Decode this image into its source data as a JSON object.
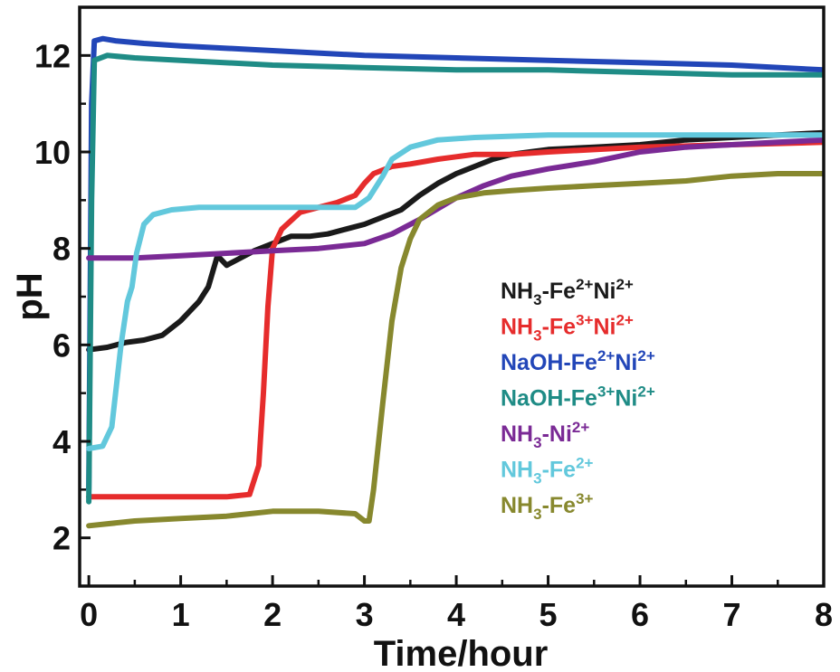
{
  "chart_data": {
    "type": "line",
    "title": "",
    "xlabel": "Time/hour",
    "ylabel": "pH",
    "xlim": [
      -0.1,
      8
    ],
    "ylim": [
      1,
      13
    ],
    "x_ticks": [
      "0",
      "1",
      "2",
      "3",
      "4",
      "5",
      "6",
      "7",
      "8"
    ],
    "y_ticks": [
      "2",
      "4",
      "6",
      "8",
      "10",
      "12"
    ],
    "x_tick_values": [
      0,
      1,
      2,
      3,
      4,
      5,
      6,
      7,
      8
    ],
    "y_tick_values": [
      2,
      4,
      6,
      8,
      10,
      12
    ],
    "grid": false,
    "legend_position": "center-right",
    "series": [
      {
        "name": "NH3-Fe2+Ni2+",
        "legend": {
          "base": "NH",
          "sub": "3",
          "rest": [
            [
              "-Fe",
              ""
            ],
            [
              "",
              "2+"
            ],
            [
              "Ni",
              ""
            ],
            [
              "",
              "2+"
            ]
          ]
        },
        "color": "#1a1a1a",
        "points": [
          [
            0,
            5.9
          ],
          [
            0.2,
            5.95
          ],
          [
            0.4,
            6.05
          ],
          [
            0.6,
            6.1
          ],
          [
            0.8,
            6.2
          ],
          [
            1.0,
            6.5
          ],
          [
            1.2,
            6.9
          ],
          [
            1.3,
            7.2
          ],
          [
            1.4,
            7.85
          ],
          [
            1.5,
            7.65
          ],
          [
            1.6,
            7.75
          ],
          [
            1.8,
            7.95
          ],
          [
            2.0,
            8.1
          ],
          [
            2.2,
            8.25
          ],
          [
            2.4,
            8.25
          ],
          [
            2.6,
            8.3
          ],
          [
            2.8,
            8.4
          ],
          [
            3.0,
            8.5
          ],
          [
            3.2,
            8.65
          ],
          [
            3.4,
            8.8
          ],
          [
            3.6,
            9.1
          ],
          [
            3.8,
            9.35
          ],
          [
            4.0,
            9.55
          ],
          [
            4.2,
            9.7
          ],
          [
            4.4,
            9.85
          ],
          [
            4.6,
            9.95
          ],
          [
            4.8,
            10.0
          ],
          [
            5.0,
            10.05
          ],
          [
            5.5,
            10.1
          ],
          [
            6.0,
            10.15
          ],
          [
            6.5,
            10.25
          ],
          [
            7.0,
            10.3
          ],
          [
            7.5,
            10.35
          ],
          [
            8.0,
            10.4
          ]
        ]
      },
      {
        "name": "NH3-Fe3+Ni2+",
        "legend": {
          "base": "NH",
          "sub": "3",
          "rest": [
            [
              "-Fe",
              ""
            ],
            [
              "",
              "3+"
            ],
            [
              "Ni",
              ""
            ],
            [
              "",
              "2+"
            ]
          ]
        },
        "color": "#e62c2c",
        "points": [
          [
            0,
            2.85
          ],
          [
            0.5,
            2.85
          ],
          [
            1.0,
            2.85
          ],
          [
            1.5,
            2.85
          ],
          [
            1.75,
            2.9
          ],
          [
            1.85,
            3.5
          ],
          [
            1.9,
            5.0
          ],
          [
            1.95,
            6.8
          ],
          [
            2.0,
            8.0
          ],
          [
            2.1,
            8.4
          ],
          [
            2.3,
            8.75
          ],
          [
            2.5,
            8.85
          ],
          [
            2.7,
            8.95
          ],
          [
            2.9,
            9.1
          ],
          [
            3.0,
            9.35
          ],
          [
            3.1,
            9.55
          ],
          [
            3.3,
            9.7
          ],
          [
            3.5,
            9.75
          ],
          [
            3.8,
            9.85
          ],
          [
            4.0,
            9.9
          ],
          [
            4.2,
            9.95
          ],
          [
            4.4,
            9.95
          ],
          [
            4.6,
            9.95
          ],
          [
            5.0,
            10.0
          ],
          [
            6.0,
            10.1
          ],
          [
            7.0,
            10.15
          ],
          [
            8.0,
            10.2
          ]
        ]
      },
      {
        "name": "NaOH-Fe2+Ni2+",
        "legend": {
          "base": "NaOH-Fe",
          "sub": "",
          "rest": [
            [
              "",
              "2+"
            ],
            [
              "Ni",
              ""
            ],
            [
              "",
              "2+"
            ]
          ]
        },
        "color": "#2246b8",
        "points": [
          [
            0,
            3.0
          ],
          [
            0.03,
            11.0
          ],
          [
            0.06,
            12.3
          ],
          [
            0.15,
            12.35
          ],
          [
            0.3,
            12.3
          ],
          [
            0.6,
            12.25
          ],
          [
            1.0,
            12.2
          ],
          [
            2.0,
            12.1
          ],
          [
            3.0,
            12.0
          ],
          [
            4.0,
            11.95
          ],
          [
            5.0,
            11.9
          ],
          [
            6.0,
            11.85
          ],
          [
            7.0,
            11.8
          ],
          [
            8.0,
            11.7
          ]
        ]
      },
      {
        "name": "NaOH-Fe3+Ni2+",
        "legend": {
          "base": "NaOH-Fe",
          "sub": "",
          "rest": [
            [
              "",
              "3+"
            ],
            [
              "Ni",
              ""
            ],
            [
              "",
              "2+"
            ]
          ]
        },
        "color": "#1f8c86",
        "points": [
          [
            0,
            2.75
          ],
          [
            0.03,
            9.0
          ],
          [
            0.06,
            11.9
          ],
          [
            0.2,
            12.0
          ],
          [
            0.5,
            11.95
          ],
          [
            1.0,
            11.9
          ],
          [
            2.0,
            11.8
          ],
          [
            3.0,
            11.75
          ],
          [
            4.0,
            11.7
          ],
          [
            5.0,
            11.7
          ],
          [
            6.0,
            11.65
          ],
          [
            7.0,
            11.6
          ],
          [
            8.0,
            11.6
          ]
        ]
      },
      {
        "name": "NH3-Ni2+",
        "legend": {
          "base": "NH",
          "sub": "3",
          "rest": [
            [
              "-Ni",
              ""
            ],
            [
              "",
              "2+"
            ]
          ]
        },
        "color": "#7a2a95",
        "points": [
          [
            0,
            7.8
          ],
          [
            0.5,
            7.8
          ],
          [
            1.0,
            7.85
          ],
          [
            1.5,
            7.9
          ],
          [
            2.0,
            7.95
          ],
          [
            2.5,
            8.0
          ],
          [
            3.0,
            8.1
          ],
          [
            3.3,
            8.3
          ],
          [
            3.6,
            8.6
          ],
          [
            4.0,
            9.05
          ],
          [
            4.3,
            9.3
          ],
          [
            4.6,
            9.5
          ],
          [
            5.0,
            9.65
          ],
          [
            5.5,
            9.8
          ],
          [
            6.0,
            10.0
          ],
          [
            6.5,
            10.1
          ],
          [
            7.0,
            10.15
          ],
          [
            7.5,
            10.2
          ],
          [
            8.0,
            10.25
          ]
        ]
      },
      {
        "name": "NH3-Fe2+",
        "legend": {
          "base": "NH",
          "sub": "3",
          "rest": [
            [
              "-Fe",
              ""
            ],
            [
              "",
              "2+"
            ]
          ]
        },
        "color": "#62c8dc",
        "points": [
          [
            0,
            3.85
          ],
          [
            0.15,
            3.9
          ],
          [
            0.25,
            4.3
          ],
          [
            0.35,
            6.0
          ],
          [
            0.42,
            6.9
          ],
          [
            0.47,
            7.2
          ],
          [
            0.52,
            7.9
          ],
          [
            0.6,
            8.5
          ],
          [
            0.7,
            8.7
          ],
          [
            0.9,
            8.8
          ],
          [
            1.2,
            8.85
          ],
          [
            1.6,
            8.85
          ],
          [
            2.0,
            8.85
          ],
          [
            2.5,
            8.85
          ],
          [
            2.9,
            8.85
          ],
          [
            3.05,
            9.05
          ],
          [
            3.2,
            9.5
          ],
          [
            3.3,
            9.85
          ],
          [
            3.5,
            10.1
          ],
          [
            3.8,
            10.25
          ],
          [
            4.2,
            10.3
          ],
          [
            5.0,
            10.35
          ],
          [
            6.0,
            10.35
          ],
          [
            7.0,
            10.35
          ],
          [
            8.0,
            10.35
          ]
        ]
      },
      {
        "name": "NH3-Fe3+",
        "legend": {
          "base": "NH",
          "sub": "3",
          "rest": [
            [
              "-Fe",
              ""
            ],
            [
              "",
              "3+"
            ]
          ]
        },
        "color": "#87882e",
        "points": [
          [
            0,
            2.25
          ],
          [
            0.5,
            2.35
          ],
          [
            1.0,
            2.4
          ],
          [
            1.5,
            2.45
          ],
          [
            2.0,
            2.55
          ],
          [
            2.5,
            2.55
          ],
          [
            2.9,
            2.5
          ],
          [
            3.0,
            2.35
          ],
          [
            3.05,
            2.35
          ],
          [
            3.1,
            3.0
          ],
          [
            3.2,
            4.8
          ],
          [
            3.3,
            6.5
          ],
          [
            3.4,
            7.6
          ],
          [
            3.5,
            8.2
          ],
          [
            3.6,
            8.6
          ],
          [
            3.8,
            8.9
          ],
          [
            4.0,
            9.05
          ],
          [
            4.3,
            9.15
          ],
          [
            4.6,
            9.2
          ],
          [
            5.0,
            9.25
          ],
          [
            5.5,
            9.3
          ],
          [
            6.0,
            9.35
          ],
          [
            6.5,
            9.4
          ],
          [
            7.0,
            9.5
          ],
          [
            7.5,
            9.55
          ],
          [
            8.0,
            9.55
          ]
        ]
      }
    ]
  }
}
